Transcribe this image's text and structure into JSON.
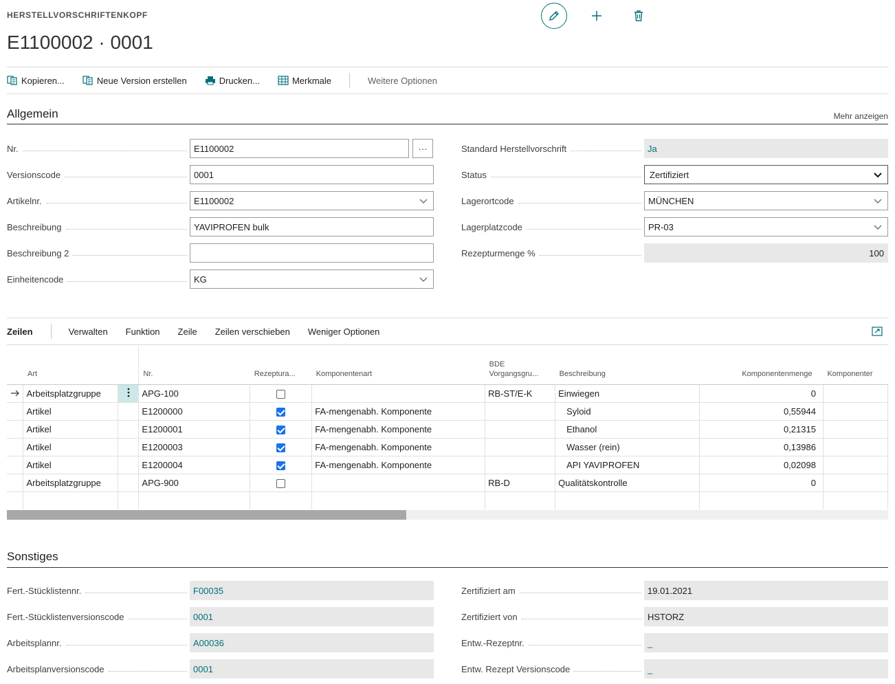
{
  "header": {
    "caption": "HERSTELLVORSCHRIFTENKOPF",
    "title": "E1100002 · 0001",
    "icons": [
      "edit-icon",
      "plus-icon",
      "trash-icon"
    ]
  },
  "actions": {
    "copy": "Kopieren...",
    "new_version": "Neue Version erstellen",
    "print": "Drucken...",
    "attributes": "Merkmale",
    "more": "Weitere Optionen"
  },
  "general": {
    "title": "Allgemein",
    "show_more": "Mehr anzeigen",
    "fields": {
      "nr": {
        "label": "Nr.",
        "value": "E1100002",
        "assist": "···"
      },
      "version_code": {
        "label": "Versionscode",
        "value": "0001"
      },
      "item_no": {
        "label": "Artikelnr.",
        "value": "E1100002"
      },
      "description": {
        "label": "Beschreibung",
        "value": "YAVIPROFEN bulk"
      },
      "description2": {
        "label": "Beschreibung 2",
        "value": ""
      },
      "uom": {
        "label": "Einheitencode",
        "value": "KG"
      },
      "standard": {
        "label": "Standard Herstellvorschrift",
        "value": "Ja"
      },
      "status": {
        "label": "Status",
        "value": "Zertifiziert"
      },
      "location": {
        "label": "Lagerortcode",
        "value": "MÜNCHEN"
      },
      "bin": {
        "label": "Lagerplatzcode",
        "value": "PR-03"
      },
      "recipe_qty": {
        "label": "Rezepturmenge %",
        "value": "100"
      }
    }
  },
  "lines": {
    "title": "Zeilen",
    "menu": [
      "Verwalten",
      "Funktion",
      "Zeile",
      "Zeilen verschieben"
    ],
    "less": "Weniger Optionen",
    "columns": {
      "type": "Art",
      "no": "Nr.",
      "recipe": "Rezeptura...",
      "comp_type": "Komponentenart",
      "bde1": "BDE",
      "bde2": "Vorgangsgru...",
      "desc": "Beschreibung",
      "qty": "Komponentenmenge",
      "comp": "Komponenter"
    },
    "rows": [
      {
        "type": "Arbeitsplatzgruppe",
        "no": "APG-100",
        "recipe": false,
        "comp_type": "",
        "bde": "RB-ST/E-K",
        "desc": "Einwiegen",
        "qty": "0",
        "indent": false
      },
      {
        "type": "Artikel",
        "no": "E1200000",
        "recipe": true,
        "comp_type": "FA-mengenabh. Komponente",
        "bde": "",
        "desc": "Syloid",
        "qty": "0,55944",
        "indent": true
      },
      {
        "type": "Artikel",
        "no": "E1200001",
        "recipe": true,
        "comp_type": "FA-mengenabh. Komponente",
        "bde": "",
        "desc": "Ethanol",
        "qty": "0,21315",
        "indent": true
      },
      {
        "type": "Artikel",
        "no": "E1200003",
        "recipe": true,
        "comp_type": "FA-mengenabh. Komponente",
        "bde": "",
        "desc": "Wasser (rein)",
        "qty": "0,13986",
        "indent": true
      },
      {
        "type": "Artikel",
        "no": "E1200004",
        "recipe": true,
        "comp_type": "FA-mengenabh. Komponente",
        "bde": "",
        "desc": "API YAVIPROFEN",
        "qty": "0,02098",
        "indent": true
      },
      {
        "type": "Arbeitsplatzgruppe",
        "no": "APG-900",
        "recipe": false,
        "comp_type": "",
        "bde": "RB-D",
        "desc": "Qualitätskontrolle",
        "qty": "0",
        "indent": false
      }
    ]
  },
  "other": {
    "title": "Sonstiges",
    "fields": {
      "bom_no": {
        "label": "Fert.-Stücklistennr.",
        "value": "F00035"
      },
      "bom_version": {
        "label": "Fert.-Stücklistenversionscode",
        "value": "0001"
      },
      "routing_no": {
        "label": "Arbeitsplannr.",
        "value": "A00036"
      },
      "routing_version": {
        "label": "Arbeitsplanversionscode",
        "value": "0001"
      },
      "cert_date": {
        "label": "Zertifiziert am",
        "value": "19.01.2021"
      },
      "cert_by": {
        "label": "Zertifiziert von",
        "value": "HSTORZ"
      },
      "dev_recipe": {
        "label": "Entw.-Rezeptnr.",
        "value": "_"
      },
      "dev_recipe_version": {
        "label": "Entw. Rezept Versionscode",
        "value": "_"
      }
    }
  }
}
